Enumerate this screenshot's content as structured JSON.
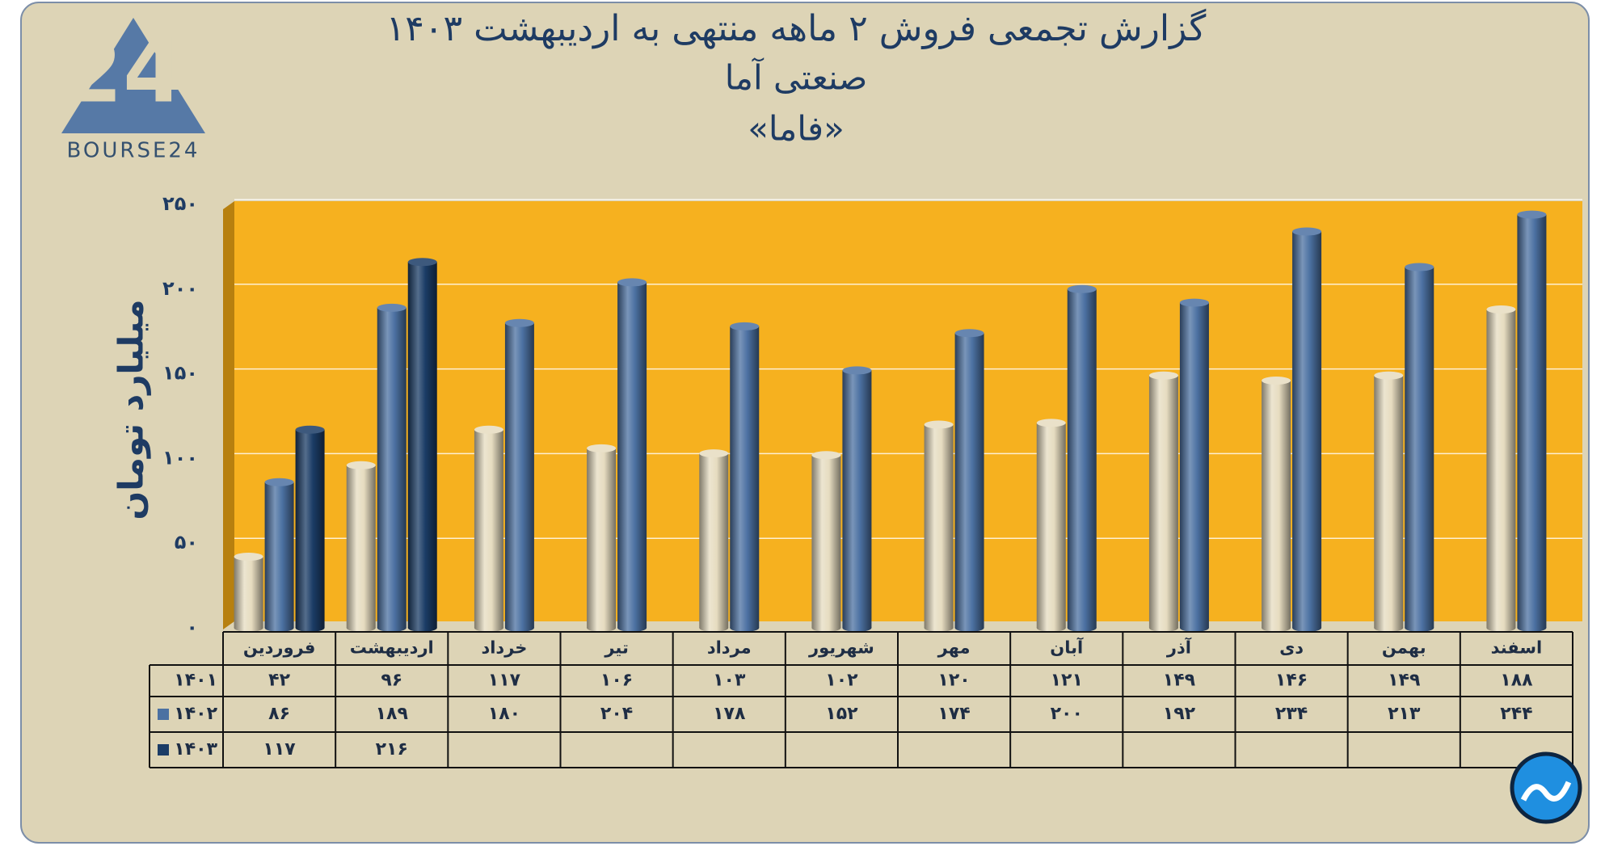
{
  "logo": "BOURSE24",
  "chart_data": {
    "type": "bar",
    "title": "گزارش تجمعی فروش ۲ ماهه منتهی به اردیبهشت ۱۴۰۳",
    "subtitle": "صنعتی آما",
    "subtitle2": "«فاما»",
    "y_label": "میلیارد تومان",
    "categories": [
      "فروردین",
      "اردیبهشت",
      "خرداد",
      "تیر",
      "مرداد",
      "شهریور",
      "مهر",
      "آبان",
      "آذر",
      "دی",
      "بهمن",
      "اسفند"
    ],
    "series": [
      {
        "name": "۱۴۰۱",
        "color": "#e6dcc0",
        "values": [
          42,
          96,
          117,
          106,
          103,
          102,
          120,
          121,
          149,
          146,
          149,
          188
        ],
        "value_labels": [
          "۴۲",
          "۹۶",
          "۱۱۷",
          "۱۰۶",
          "۱۰۳",
          "۱۰۲",
          "۱۲۰",
          "۱۲۱",
          "۱۴۹",
          "۱۴۶",
          "۱۴۹",
          "۱۸۸"
        ]
      },
      {
        "name": "۱۴۰۲",
        "color": "#4c71a2",
        "values": [
          86,
          189,
          180,
          204,
          178,
          152,
          174,
          200,
          192,
          234,
          213,
          244
        ],
        "value_labels": [
          "۸۶",
          "۱۸۹",
          "۱۸۰",
          "۲۰۴",
          "۱۷۸",
          "۱۵۲",
          "۱۷۴",
          "۲۰۰",
          "۱۹۲",
          "۲۳۴",
          "۲۱۳",
          "۲۴۴"
        ]
      },
      {
        "name": "۱۴۰۳",
        "color": "#1b3c66",
        "values": [
          117,
          216,
          null,
          null,
          null,
          null,
          null,
          null,
          null,
          null,
          null,
          null
        ],
        "value_labels": [
          "۱۱۷",
          "۲۱۶",
          null,
          null,
          null,
          null,
          null,
          null,
          null,
          null,
          null,
          null
        ]
      }
    ],
    "ylim": [
      0,
      250
    ],
    "yticks": [
      {
        "value": 0,
        "label": "۰"
      },
      {
        "value": 50,
        "label": "۵۰"
      },
      {
        "value": 100,
        "label": "۱۰۰"
      },
      {
        "value": 150,
        "label": "۱۵۰"
      },
      {
        "value": 200,
        "label": "۲۰۰"
      },
      {
        "value": 250,
        "label": "۲۵۰"
      }
    ],
    "grid": true,
    "plot_color": "#f6b11f"
  }
}
